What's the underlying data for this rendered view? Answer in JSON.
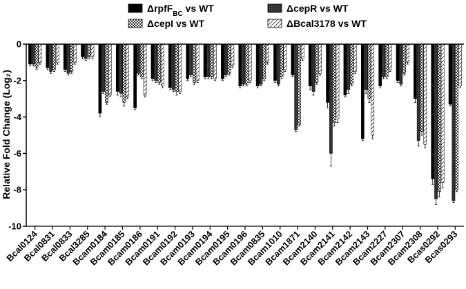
{
  "chart_data": {
    "type": "bar",
    "ylabel": "Relative Fold Change (Log₂)",
    "ylim": [
      -10,
      0
    ],
    "yticks": [
      0,
      -2,
      -4,
      -6,
      -8,
      -10
    ],
    "grid": false,
    "legend_position": "top",
    "categories": [
      "Bcal0124",
      "Bcal0831",
      "Bcal0833",
      "Bcal3285",
      "Bcam0184",
      "Bcam0185",
      "Bcam0186",
      "Bcam0191",
      "Bcam0192",
      "Bcam0193",
      "Bcam0194",
      "Bcam0195",
      "Bcam0196",
      "Bcam0835",
      "Bcam1010",
      "Bcam1871",
      "Bcam2140",
      "Bcam2141",
      "Bcam2142",
      "Bcam2143",
      "Bcam2227",
      "Bcam2307",
      "Bcam2308",
      "Bcas0292",
      "Bcas0293"
    ],
    "series": [
      {
        "name": "ΔrpfF",
        "name_sub": "BC",
        "name_suffix": " vs WT",
        "color": "#000000",
        "pattern": "solid",
        "values": [
          -1.1,
          -1.3,
          -1.4,
          -0.7,
          -3.8,
          -2.6,
          -3.5,
          -1.9,
          -2.4,
          -1.9,
          -1.8,
          -1.9,
          -2.3,
          -2.3,
          -2.0,
          -1.7,
          -2.3,
          -3.2,
          -2.8,
          -5.2,
          -2.3,
          -2.0,
          -3.0,
          -7.4,
          -3.3
        ],
        "errors": [
          0.1,
          0.1,
          0.1,
          0.1,
          0.2,
          0.2,
          0.1,
          0.1,
          0.1,
          0.1,
          0.1,
          0.1,
          0.1,
          0.1,
          0.1,
          0.1,
          0.2,
          0.3,
          0.1,
          0.1,
          0.1,
          0.1,
          0.2,
          0.3,
          0.1
        ]
      },
      {
        "name": "ΔcepR vs WT",
        "color": "#3a3a3a",
        "pattern": "dark",
        "values": [
          -1.1,
          -1.5,
          -1.6,
          -0.8,
          -2.6,
          -2.7,
          -1.6,
          -2.0,
          -2.5,
          -1.7,
          -1.8,
          -1.7,
          -2.2,
          -2.2,
          -2.2,
          -4.7,
          -2.6,
          -6.0,
          -2.5,
          -2.5,
          -1.8,
          -2.2,
          -5.3,
          -8.5,
          -8.6
        ],
        "errors": [
          0.1,
          0.1,
          0.1,
          0.1,
          0.1,
          0.2,
          0.1,
          0.1,
          0.1,
          0.1,
          0.1,
          0.1,
          0.1,
          0.1,
          0.1,
          0.1,
          0.2,
          0.7,
          0.2,
          0.2,
          0.1,
          0.1,
          0.3,
          0.3,
          0.1
        ]
      },
      {
        "name": "ΔcepI vs WT",
        "color": "#6a6a6a",
        "pattern": "checker",
        "values": [
          -1.3,
          -1.4,
          -1.5,
          -0.7,
          -3.2,
          -3.2,
          -1.8,
          -2.1,
          -2.6,
          -2.1,
          -1.8,
          -1.6,
          -2.2,
          -1.9,
          -1.8,
          -4.4,
          -2.1,
          -4.3,
          -2.2,
          -3.0,
          -1.8,
          -1.6,
          -4.8,
          -8.1,
          -8.0
        ],
        "errors": [
          0.1,
          0.1,
          0.1,
          0.1,
          0.1,
          0.2,
          0.1,
          0.1,
          0.2,
          0.1,
          0.1,
          0.1,
          0.1,
          0.1,
          0.1,
          0.1,
          0.1,
          0.2,
          0.1,
          0.2,
          0.1,
          0.1,
          0.2,
          0.3,
          0.1
        ]
      },
      {
        "name": "ΔBcal3178 vs WT",
        "color": "#ffffff",
        "pattern": "hatch",
        "values": [
          -1.0,
          -1.0,
          -1.0,
          -0.7,
          -2.8,
          -2.9,
          -2.8,
          -2.3,
          -2.6,
          -2.0,
          -1.9,
          -1.2,
          -2.0,
          -1.0,
          -1.4,
          -0.8,
          -1.6,
          -4.1,
          -1.5,
          -5.0,
          -1.4,
          -1.0,
          -5.5,
          -7.6,
          -2.3
        ],
        "errors": [
          0.1,
          0.1,
          0.1,
          0.1,
          0.1,
          0.1,
          0.1,
          0.1,
          0.1,
          0.1,
          0.1,
          0.1,
          0.1,
          0.1,
          0.1,
          0.1,
          0.1,
          0.2,
          0.1,
          0.2,
          0.1,
          0.1,
          0.2,
          0.3,
          0.1
        ]
      }
    ]
  }
}
